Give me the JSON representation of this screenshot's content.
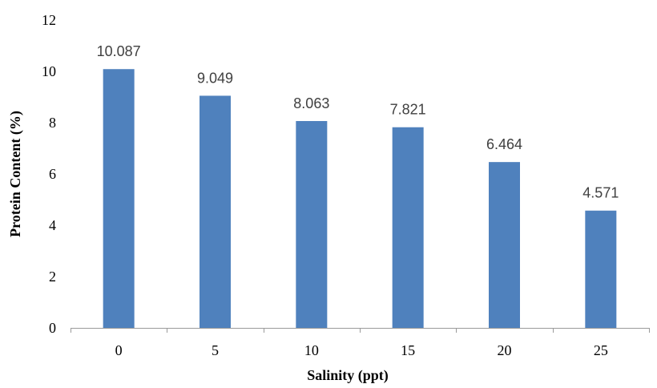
{
  "chart_data": {
    "type": "bar",
    "categories": [
      "0",
      "5",
      "10",
      "15",
      "20",
      "25"
    ],
    "values": [
      10.087,
      9.049,
      8.063,
      7.821,
      6.464,
      4.571
    ],
    "data_labels": [
      "10.087",
      "9.049",
      "8.063",
      "7.821",
      "6.464",
      "4.571"
    ],
    "xlabel": "Salinity (ppt)",
    "ylabel": "Protein Content (%)",
    "ylim": [
      0,
      12
    ],
    "yticks": [
      "0",
      "2",
      "4",
      "6",
      "8",
      "10",
      "12"
    ],
    "grid": false,
    "legend": "none",
    "colors": {
      "bar": "#4f81bd",
      "label": "#404040",
      "axis": "#9a9a9a"
    }
  }
}
